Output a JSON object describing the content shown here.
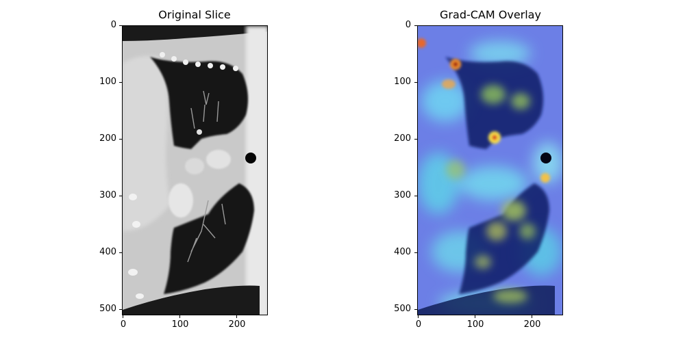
{
  "figure": {
    "panels": [
      {
        "title": "Original Slice",
        "y_ticks": [
          "0",
          "100",
          "200",
          "300",
          "400",
          "500"
        ],
        "x_ticks": [
          "0",
          "100",
          "200"
        ]
      },
      {
        "title": "Grad-CAM Overlay",
        "y_ticks": [
          "0",
          "100",
          "200",
          "300",
          "400",
          "500"
        ],
        "x_ticks": [
          "0",
          "100",
          "200"
        ]
      }
    ],
    "image_extent": {
      "width": 256,
      "height": 512
    }
  }
}
